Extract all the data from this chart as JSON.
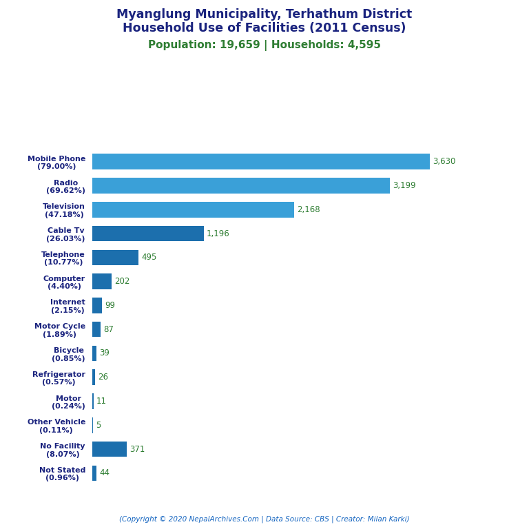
{
  "title_line1": "Myanglung Municipality, Terhathum District",
  "title_line2": "Household Use of Facilities (2011 Census)",
  "subtitle": "Population: 19,659 | Households: 4,595",
  "footer": "(Copyright © 2020 NepalArchives.Com | Data Source: CBS | Creator: Milan Karki)",
  "categories": [
    "Not Stated\n(0.96%)",
    "No Facility\n(8.07%)",
    "Other Vehicle\n(0.11%)",
    "Motor\n(0.24%)",
    "Refrigerator\n(0.57%)",
    "Bicycle\n(0.85%)",
    "Motor Cycle\n(1.89%)",
    "Internet\n(2.15%)",
    "Computer\n(4.40%)",
    "Telephone\n(10.77%)",
    "Cable Tv\n(26.03%)",
    "Television\n(47.18%)",
    "Radio\n(69.62%)",
    "Mobile Phone\n(79.00%)"
  ],
  "values": [
    44,
    371,
    5,
    11,
    26,
    39,
    87,
    99,
    202,
    495,
    1196,
    2168,
    3199,
    3630
  ],
  "bar_colors": [
    "#1C6FAD",
    "#1C6FAD",
    "#1C6FAD",
    "#1C6FAD",
    "#1C6FAD",
    "#1C6FAD",
    "#1C6FAD",
    "#1C6FAD",
    "#1C6FAD",
    "#1C6FAD",
    "#1C6FAD",
    "#3AA0D8",
    "#3AA0D8",
    "#3AA0D8"
  ],
  "title_color": "#1a237e",
  "subtitle_color": "#2e7d32",
  "value_color": "#2e7d32",
  "label_color": "#1a237e",
  "footer_color": "#1565C0",
  "background_color": "#ffffff",
  "xlim": [
    0,
    4100
  ],
  "figsize": [
    7.68,
    7.68
  ],
  "dpi": 100
}
